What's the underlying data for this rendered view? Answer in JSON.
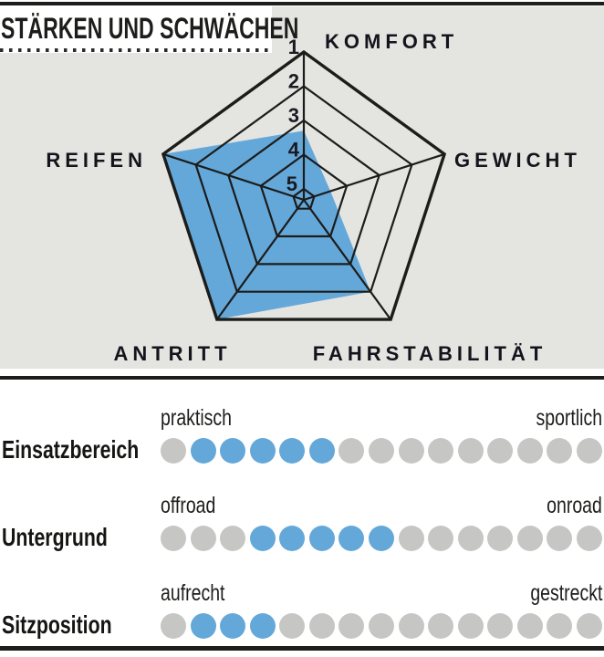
{
  "title": "STÄRKEN UND SCHWÄCHEN",
  "colors": {
    "accent_blue": "#64a8da",
    "dot_gray": "#c6c6c4",
    "panel_gray": "#e4e4e1",
    "line_dark": "#1d1d1b"
  },
  "chart_data": [
    {
      "type": "radar",
      "title": "STÄRKEN UND SCHWÄCHEN",
      "axes": [
        "KOMFORT",
        "GEWICHT",
        "FAHRSTABILITÄT",
        "ANTRITT",
        "REIFEN"
      ],
      "values": [
        3.3,
        4.5,
        2,
        1,
        1
      ],
      "scale_ticks": [
        "1",
        "2",
        "3",
        "4",
        "5"
      ],
      "scale_note": "Grades 1 (outer ring, best) to 5 (center, worst); blue polygon shows the rating per axis",
      "fill_color": "#64a8da",
      "legend_position": "none",
      "grid": "pentagon rings"
    },
    {
      "type": "dot-rating",
      "dots_per_row": 15,
      "rows": [
        {
          "label": "Einsatzbereich",
          "left": "praktisch",
          "right": "sportlich",
          "dots_total": 15,
          "dots_filled_positions": [
            2,
            3,
            4,
            5,
            6
          ]
        },
        {
          "label": "Untergrund",
          "left": "offroad",
          "right": "onroad",
          "dots_total": 15,
          "dots_filled_positions": [
            4,
            5,
            6,
            7,
            8
          ]
        },
        {
          "label": "Sitzposition",
          "left": "aufrecht",
          "right": "gestreckt",
          "dots_total": 15,
          "dots_filled_positions": [
            2,
            3,
            4
          ]
        }
      ]
    }
  ]
}
